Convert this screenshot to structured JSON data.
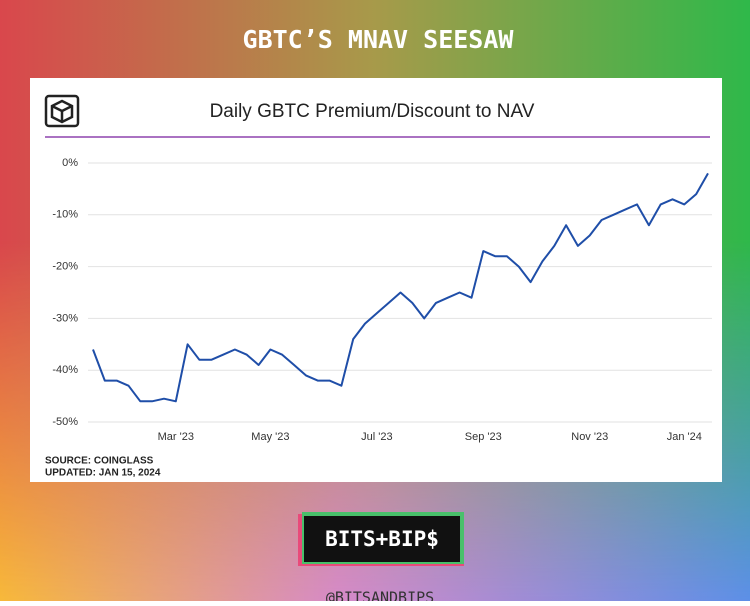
{
  "banner_title": "GBTC’S MNAV SEESAW",
  "source": "SOURCE: COINGLASS",
  "updated": "UPDATED: JAN 15, 2024",
  "brand": "BITS+BIP$",
  "handle": "@BITSANDBIPS",
  "chart_data": {
    "type": "line",
    "title": "Daily GBTC Premium/Discount to NAV",
    "categories": [
      null,
      null,
      null,
      null,
      null,
      null,
      null,
      "Mar '23",
      null,
      null,
      null,
      null,
      null,
      null,
      null,
      "May '23",
      null,
      null,
      null,
      null,
      null,
      null,
      null,
      null,
      "Jul '23",
      null,
      null,
      null,
      null,
      null,
      null,
      null,
      null,
      "Sep '23",
      null,
      null,
      null,
      null,
      null,
      null,
      null,
      null,
      "Nov '23",
      null,
      null,
      null,
      null,
      null,
      null,
      null,
      "Jan '24",
      null,
      null
    ],
    "series": [
      {
        "name": "GBTC Premium/Discount",
        "color": "#1f4ea8",
        "values": [
          -36,
          -42,
          -42,
          -43,
          -46,
          -46,
          -45.5,
          -46,
          -35,
          -38,
          -38,
          -37,
          -36,
          -37,
          -39,
          -36,
          -37,
          -39,
          -41,
          -42,
          -42,
          -43,
          -34,
          -31,
          -29,
          -27,
          -25,
          -27,
          -30,
          -27,
          -26,
          -25,
          -26,
          -17,
          -18,
          -18,
          -20,
          -23,
          -19,
          -16,
          -12,
          -16,
          -14,
          -11,
          -10,
          -9,
          -8,
          -12,
          -8,
          -7,
          -8,
          -6,
          -2
        ]
      }
    ],
    "ylim": [
      -50,
      0
    ],
    "yticks": [
      {
        "value": 0,
        "label": "0%"
      },
      {
        "value": -10,
        "label": "-10%"
      },
      {
        "value": -20,
        "label": "-20%"
      },
      {
        "value": -30,
        "label": "-30%"
      },
      {
        "value": -40,
        "label": "-40%"
      },
      {
        "value": -50,
        "label": "-50%"
      }
    ],
    "grid": true
  }
}
